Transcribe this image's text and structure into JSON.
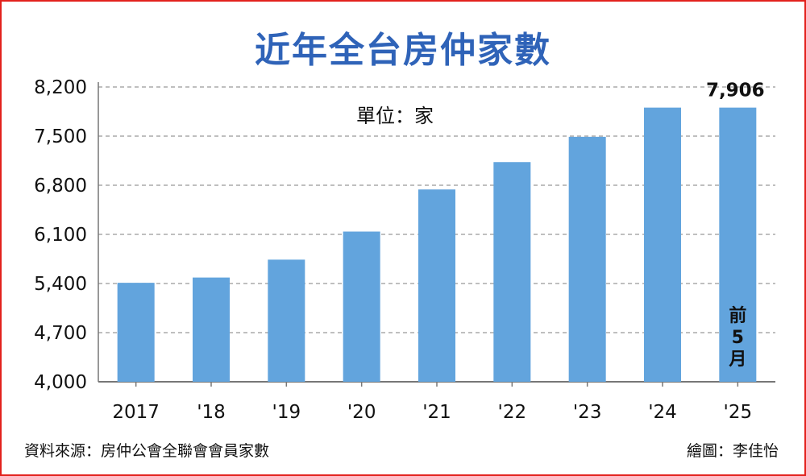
{
  "title": "近年全台房仲家數",
  "unit_label": "單位：家",
  "source": "資料來源：房仲公會全聯會會員家數",
  "credit": "繪圖：李佳怡",
  "colors": {
    "bar": "#62a4dd",
    "title": "#2f63b8",
    "border": "#e2211c",
    "grid": "#999999"
  },
  "chart_data": {
    "type": "bar",
    "title": "近年全台房仲家數",
    "categories": [
      "2017",
      "'18",
      "'19",
      "'20",
      "'21",
      "'22",
      "'23",
      "'24",
      "'25"
    ],
    "values": [
      5410,
      5485,
      5740,
      6140,
      6740,
      7130,
      7490,
      7906,
      7906
    ],
    "ylabel": "單位：家",
    "ylim": [
      4000,
      8200
    ],
    "yticks": [
      4000,
      4700,
      5400,
      6100,
      6800,
      7500,
      8200
    ],
    "ytick_labels": [
      "4,000",
      "4,700",
      "5,400",
      "6,100",
      "6,800",
      "7,500",
      "8,200"
    ],
    "grid": true,
    "data_labels": [
      {
        "index": 8,
        "text": "7,906"
      }
    ],
    "annotations": [
      {
        "index": 8,
        "lines": [
          "前",
          "5",
          "月"
        ]
      }
    ]
  }
}
